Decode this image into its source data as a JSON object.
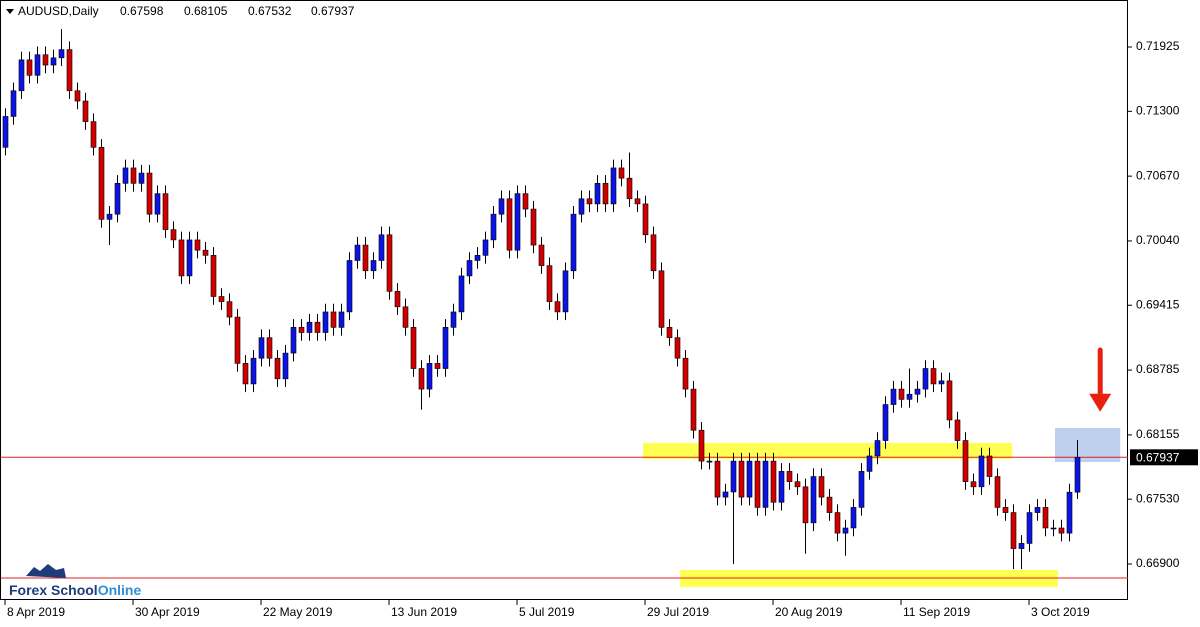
{
  "chart_data": {
    "type": "candlestick",
    "title": "AUDUSD,Daily",
    "bull_color": "#0a14e6",
    "bear_color": "#d00000",
    "open": [
      0.7095,
      0.7125,
      0.715,
      0.718,
      0.7165,
      0.7185,
      0.7175,
      0.7182,
      0.719,
      0.715,
      0.714,
      0.712,
      0.7095,
      0.7025,
      0.703,
      0.706,
      0.7075,
      0.706,
      0.707,
      0.703,
      0.705,
      0.7015,
      0.7005,
      0.697,
      0.7005,
      0.6995,
      0.699,
      0.695,
      0.6945,
      0.693,
      0.6885,
      0.6865,
      0.689,
      0.691,
      0.689,
      0.687,
      0.6895,
      0.692,
      0.6915,
      0.6925,
      0.6915,
      0.6935,
      0.692,
      0.6935,
      0.6985,
      0.7,
      0.6975,
      0.6985,
      0.701,
      0.6955,
      0.694,
      0.692,
      0.688,
      0.686,
      0.6885,
      0.688,
      0.692,
      0.6935,
      0.697,
      0.6985,
      0.699,
      0.7005,
      0.703,
      0.7045,
      0.6995,
      0.705,
      0.7035,
      0.7,
      0.698,
      0.6945,
      0.6935,
      0.6975,
      0.703,
      0.7045,
      0.704,
      0.706,
      0.704,
      0.7075,
      0.7065,
      0.7045,
      0.704,
      0.701,
      0.6975,
      0.692,
      0.691,
      0.689,
      0.686,
      0.682,
      0.679,
      0.679,
      0.6755,
      0.676,
      0.679,
      0.6755,
      0.679,
      0.6745,
      0.679,
      0.675,
      0.678,
      0.677,
      0.6765,
      0.673,
      0.6775,
      0.6755,
      0.674,
      0.672,
      0.6725,
      0.6745,
      0.678,
      0.6795,
      0.681,
      0.6845,
      0.686,
      0.685,
      0.6855,
      0.686,
      0.688,
      0.6865,
      0.6868,
      0.683,
      0.681,
      0.677,
      0.6765,
      0.6795,
      0.6775,
      0.6745,
      0.674,
      0.6705,
      0.671,
      0.674,
      0.6745,
      0.6725,
      0.6725,
      0.672,
      0.67598
    ],
    "high": [
      0.7133,
      0.7158,
      0.7188,
      0.7188,
      0.7193,
      0.7193,
      0.719,
      0.721,
      0.7198,
      0.7158,
      0.7148,
      0.7128,
      0.7103,
      0.7038,
      0.7068,
      0.7083,
      0.7083,
      0.7078,
      0.7078,
      0.7058,
      0.7058,
      0.7023,
      0.7013,
      0.7013,
      0.7013,
      0.7003,
      0.6998,
      0.6958,
      0.6953,
      0.6938,
      0.6893,
      0.6898,
      0.6918,
      0.6918,
      0.6898,
      0.6903,
      0.6928,
      0.6928,
      0.6933,
      0.6933,
      0.6943,
      0.6943,
      0.6943,
      0.6993,
      0.7008,
      0.7008,
      0.6993,
      0.7018,
      0.7018,
      0.6963,
      0.6948,
      0.6928,
      0.6888,
      0.6893,
      0.6893,
      0.6928,
      0.6943,
      0.6978,
      0.6993,
      0.6998,
      0.7013,
      0.7038,
      0.7053,
      0.7053,
      0.7058,
      0.7058,
      0.7043,
      0.7008,
      0.6988,
      0.6953,
      0.6983,
      0.7038,
      0.7053,
      0.7053,
      0.7068,
      0.7068,
      0.7083,
      0.7083,
      0.709,
      0.7053,
      0.7048,
      0.7018,
      0.6983,
      0.6928,
      0.6918,
      0.6898,
      0.6868,
      0.6828,
      0.6798,
      0.6798,
      0.6768,
      0.6798,
      0.6798,
      0.6798,
      0.6798,
      0.6798,
      0.6798,
      0.6788,
      0.6788,
      0.6778,
      0.6773,
      0.6783,
      0.6783,
      0.6763,
      0.6748,
      0.6733,
      0.6753,
      0.6788,
      0.6803,
      0.6818,
      0.6853,
      0.6868,
      0.6868,
      0.688,
      0.6868,
      0.6888,
      0.6888,
      0.6876,
      0.6876,
      0.6838,
      0.6818,
      0.6778,
      0.6803,
      0.6803,
      0.6783,
      0.6753,
      0.6748,
      0.6718,
      0.6748,
      0.6753,
      0.6753,
      0.6733,
      0.6733,
      0.6768,
      0.68105
    ],
    "low": [
      0.7087,
      0.7117,
      0.7142,
      0.7157,
      0.7157,
      0.7167,
      0.7167,
      0.7174,
      0.7142,
      0.7132,
      0.7112,
      0.7087,
      0.7017,
      0.7,
      0.7022,
      0.7052,
      0.7052,
      0.7052,
      0.7022,
      0.7022,
      0.7007,
      0.6997,
      0.6962,
      0.6962,
      0.6987,
      0.6982,
      0.6942,
      0.6937,
      0.6922,
      0.6877,
      0.6857,
      0.6857,
      0.6882,
      0.6882,
      0.6862,
      0.6862,
      0.6887,
      0.6907,
      0.6907,
      0.6907,
      0.6907,
      0.6912,
      0.6912,
      0.6927,
      0.6977,
      0.6967,
      0.6967,
      0.6977,
      0.6947,
      0.6932,
      0.6912,
      0.6872,
      0.684,
      0.6852,
      0.6872,
      0.6872,
      0.6912,
      0.6927,
      0.6962,
      0.6977,
      0.6982,
      0.6997,
      0.7022,
      0.6987,
      0.6987,
      0.7027,
      0.6992,
      0.6972,
      0.6937,
      0.6927,
      0.6927,
      0.6967,
      0.7022,
      0.7032,
      0.7032,
      0.7032,
      0.7032,
      0.7057,
      0.7037,
      0.7032,
      0.7002,
      0.6967,
      0.6912,
      0.6902,
      0.6882,
      0.6852,
      0.6812,
      0.6782,
      0.6782,
      0.6747,
      0.6747,
      0.669,
      0.6747,
      0.6747,
      0.6737,
      0.6737,
      0.6742,
      0.6742,
      0.6762,
      0.6757,
      0.67,
      0.6722,
      0.6747,
      0.6732,
      0.6712,
      0.6698,
      0.6717,
      0.6737,
      0.6772,
      0.6787,
      0.6802,
      0.6837,
      0.6842,
      0.6842,
      0.6847,
      0.6852,
      0.6857,
      0.6857,
      0.6822,
      0.6802,
      0.6762,
      0.6757,
      0.6757,
      0.6767,
      0.6737,
      0.6732,
      0.6685,
      0.6685,
      0.6702,
      0.6732,
      0.6717,
      0.6717,
      0.6712,
      0.6712,
      0.67532
    ],
    "close": [
      0.7125,
      0.715,
      0.718,
      0.7165,
      0.7185,
      0.7175,
      0.7182,
      0.719,
      0.715,
      0.714,
      0.712,
      0.7095,
      0.7025,
      0.703,
      0.706,
      0.7075,
      0.706,
      0.707,
      0.703,
      0.705,
      0.7015,
      0.7005,
      0.697,
      0.7005,
      0.6995,
      0.699,
      0.695,
      0.6945,
      0.693,
      0.6885,
      0.6865,
      0.689,
      0.691,
      0.689,
      0.687,
      0.6895,
      0.692,
      0.6915,
      0.6925,
      0.6915,
      0.6935,
      0.692,
      0.6935,
      0.6985,
      0.7,
      0.6975,
      0.6985,
      0.701,
      0.6955,
      0.694,
      0.692,
      0.688,
      0.686,
      0.6885,
      0.688,
      0.692,
      0.6935,
      0.697,
      0.6985,
      0.699,
      0.7005,
      0.703,
      0.7045,
      0.6995,
      0.705,
      0.7035,
      0.7,
      0.698,
      0.6945,
      0.6935,
      0.6975,
      0.703,
      0.7045,
      0.704,
      0.706,
      0.704,
      0.7075,
      0.7065,
      0.7045,
      0.704,
      0.701,
      0.6975,
      0.692,
      0.691,
      0.689,
      0.686,
      0.682,
      0.679,
      0.679,
      0.6755,
      0.676,
      0.679,
      0.6755,
      0.679,
      0.6745,
      0.679,
      0.675,
      0.678,
      0.677,
      0.6765,
      0.673,
      0.6775,
      0.6755,
      0.674,
      0.672,
      0.6725,
      0.6745,
      0.678,
      0.6795,
      0.681,
      0.6845,
      0.686,
      0.685,
      0.6855,
      0.686,
      0.688,
      0.6865,
      0.6868,
      0.683,
      0.681,
      0.677,
      0.6765,
      0.6795,
      0.6775,
      0.6745,
      0.674,
      0.6705,
      0.671,
      0.674,
      0.6745,
      0.6725,
      0.6725,
      0.672,
      0.67598,
      0.67937
    ],
    "xlim": [
      -0.625,
      140.375
    ],
    "xticks": [
      {
        "value": 0,
        "label": "8 Apr 2019"
      },
      {
        "value": 16,
        "label": "30 Apr 2019"
      },
      {
        "value": 32,
        "label": "22 May 2019"
      },
      {
        "value": 48,
        "label": "13 Jun 2019"
      },
      {
        "value": 64,
        "label": "5 Jul 2019"
      },
      {
        "value": 80,
        "label": "29 Jul 2019"
      },
      {
        "value": 96,
        "label": "20 Aug 2019"
      },
      {
        "value": 112,
        "label": "11 Sep 2019"
      },
      {
        "value": 128,
        "label": "3 Oct 2019"
      }
    ],
    "ylim": [
      0.6655,
      0.72382
    ],
    "yticks": [
      {
        "value": 0.71925,
        "label": "0.71925"
      },
      {
        "value": 0.713,
        "label": "0.71300"
      },
      {
        "value": 0.7067,
        "label": "0.70670"
      },
      {
        "value": 0.7004,
        "label": "0.70040"
      },
      {
        "value": 0.69415,
        "label": "0.69415"
      },
      {
        "value": 0.68785,
        "label": "0.68785"
      },
      {
        "value": 0.68155,
        "label": "0.68155"
      },
      {
        "value": 0.6753,
        "label": "0.67530"
      },
      {
        "value": 0.669,
        "label": "0.66900"
      }
    ],
    "hlines": [
      {
        "value": 0.67937,
        "color": "#e02020"
      },
      {
        "value": 0.66764,
        "color": "#e02020"
      }
    ],
    "zones": [
      {
        "x": [
          79.75,
          125.9
        ],
        "y": [
          0.67921,
          0.68076
        ],
        "color": "#ffff33"
      },
      {
        "x": [
          84.4,
          131.6
        ],
        "y": [
          0.66676,
          0.66842
        ],
        "color": "#ffff33"
      },
      {
        "x": [
          131.25,
          139.4
        ],
        "y": [
          0.67891,
          0.68222
        ],
        "color": "#b4c8ec"
      }
    ],
    "arrow": {
      "x": 136.9,
      "y": [
        0.6898,
        0.6838
      ],
      "color": "#e82010"
    }
  },
  "logo": [
    "Forex School",
    "Online"
  ]
}
